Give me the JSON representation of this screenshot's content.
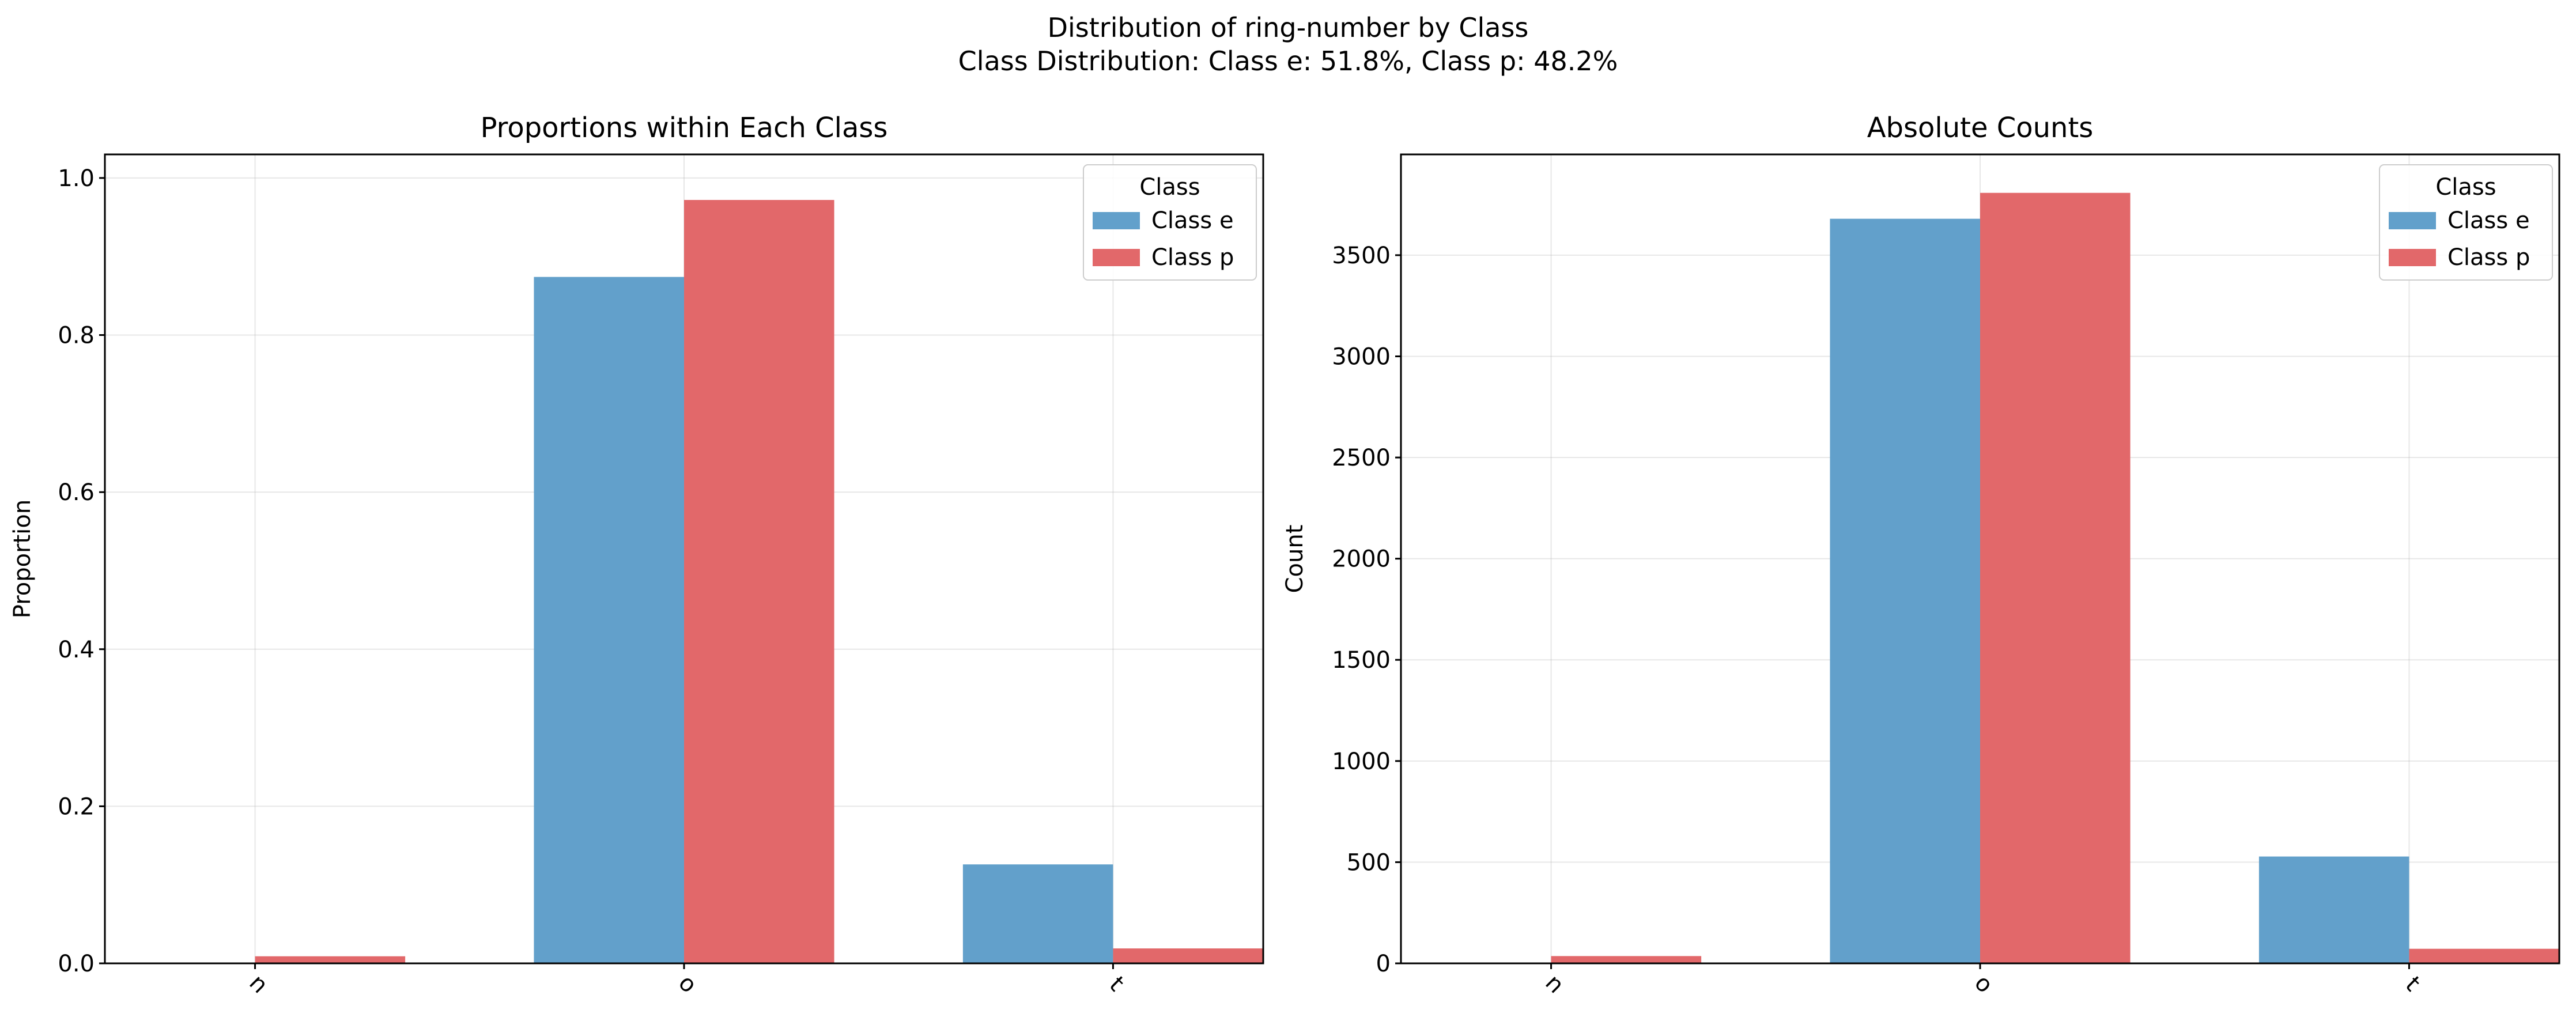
{
  "suptitle_line1": "Distribution of ring-number by Class",
  "suptitle_line2": "Class Distribution: Class e: 51.8%, Class p: 48.2%",
  "legend_title": "Class",
  "colors": {
    "Class e": "#62a0cb",
    "Class p": "#e2686a"
  },
  "chart_data": [
    {
      "type": "bar",
      "title": "Proportions within Each Class",
      "xlabel": "",
      "ylabel": "Proportion",
      "categories": [
        "n",
        "o",
        "t"
      ],
      "series": [
        {
          "name": "Class e",
          "values": [
            0.0,
            0.874,
            0.126
          ]
        },
        {
          "name": "Class p",
          "values": [
            0.009,
            0.972,
            0.019
          ]
        }
      ],
      "ylim": [
        0,
        1.03
      ],
      "yticks": [
        0.0,
        0.2,
        0.4,
        0.6,
        0.8,
        1.0
      ],
      "ytick_labels": [
        "0.0",
        "0.2",
        "0.4",
        "0.6",
        "0.8",
        "1.0"
      ],
      "grid": true,
      "legend": "top-right"
    },
    {
      "type": "bar",
      "title": "Absolute Counts",
      "xlabel": "",
      "ylabel": "Count",
      "categories": [
        "n",
        "o",
        "t"
      ],
      "series": [
        {
          "name": "Class e",
          "values": [
            0,
            3680,
            528
          ]
        },
        {
          "name": "Class p",
          "values": [
            36,
            3808,
            72
          ]
        }
      ],
      "ylim": [
        0,
        3998
      ],
      "yticks": [
        0,
        500,
        1000,
        1500,
        2000,
        2500,
        3000,
        3500
      ],
      "ytick_labels": [
        "0",
        "500",
        "1000",
        "1500",
        "2000",
        "2500",
        "3000",
        "3500"
      ],
      "grid": true,
      "legend": "top-right"
    }
  ]
}
